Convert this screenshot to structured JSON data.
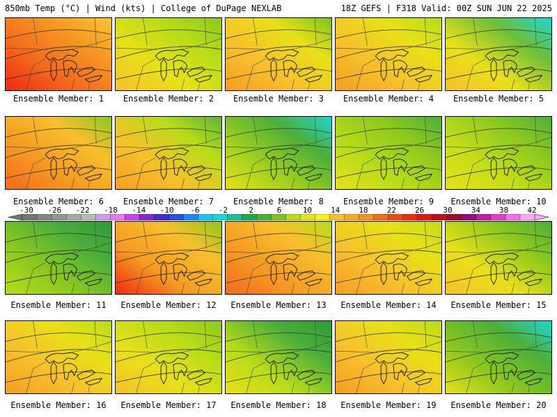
{
  "header": {
    "left": "850mb Temp (°C) | Wind (kts) | College of DuPage NEXLAB",
    "right": "18Z GEFS | F318 Valid: 00Z SUN JUN 22 2025"
  },
  "panels": [
    {
      "label": "Ensemble Member: 1",
      "colors": [
        "#f02a10",
        "#f36a1c",
        "#f59a22",
        "#f8c532"
      ]
    },
    {
      "label": "Ensemble Member: 2",
      "colors": [
        "#f7c02c",
        "#e8e018",
        "#b8dc18",
        "#8cc81e"
      ]
    },
    {
      "label": "Ensemble Member: 3",
      "colors": [
        "#f59e22",
        "#f7c02c",
        "#e8e018",
        "#7cc21e"
      ]
    },
    {
      "label": "Ensemble Member: 4",
      "colors": [
        "#f59e22",
        "#f7c02c",
        "#e8e018",
        "#b8dc18"
      ]
    },
    {
      "label": "Ensemble Member: 5",
      "colors": [
        "#f7c02c",
        "#e8e018",
        "#6cbe3a",
        "#1ed7d0"
      ]
    },
    {
      "label": "Ensemble Member: 6",
      "colors": [
        "#f36a1c",
        "#f59a22",
        "#f7c02c",
        "#8cc81e"
      ]
    },
    {
      "label": "Ensemble Member: 7",
      "colors": [
        "#f59e22",
        "#f7c02c",
        "#b8dc18",
        "#5ab43a"
      ]
    },
    {
      "label": "Ensemble Member: 8",
      "colors": [
        "#e8e018",
        "#9fd01e",
        "#4cae3a",
        "#1ed7d0"
      ]
    },
    {
      "label": "Ensemble Member: 9",
      "colors": [
        "#e8e018",
        "#b8dc18",
        "#8cc81e",
        "#4cae3a"
      ]
    },
    {
      "label": "Ensemble Member: 10",
      "colors": [
        "#e8e018",
        "#c4de18",
        "#8cc81e",
        "#4cae3a"
      ]
    },
    {
      "label": "Ensemble Member: 11",
      "colors": [
        "#b8dc18",
        "#8cc81e",
        "#4cae3a",
        "#2f9a38"
      ]
    },
    {
      "label": "Ensemble Member: 12",
      "colors": [
        "#f02a10",
        "#f59a22",
        "#f7c02c",
        "#8cc81e"
      ]
    },
    {
      "label": "Ensemble Member: 13",
      "colors": [
        "#f36a1c",
        "#f59a22",
        "#f7c02c",
        "#b8dc18"
      ]
    },
    {
      "label": "Ensemble Member: 14",
      "colors": [
        "#f59e22",
        "#f7c02c",
        "#e8e018",
        "#c4de18"
      ]
    },
    {
      "label": "Ensemble Member: 15",
      "colors": [
        "#f7c02c",
        "#e8e018",
        "#8cc81e",
        "#4cae3a"
      ]
    },
    {
      "label": "Ensemble Member: 16",
      "colors": [
        "#f59e22",
        "#f7c02c",
        "#e8e018",
        "#b8dc18"
      ]
    },
    {
      "label": "Ensemble Member: 17",
      "colors": [
        "#f7c02c",
        "#e8e018",
        "#b8dc18",
        "#8cc81e"
      ]
    },
    {
      "label": "Ensemble Member: 18",
      "colors": [
        "#e8e018",
        "#b8dc18",
        "#4cae3a",
        "#2f9a38"
      ]
    },
    {
      "label": "Ensemble Member: 19",
      "colors": [
        "#f59e22",
        "#f7c02c",
        "#e8e018",
        "#b8dc18"
      ]
    },
    {
      "label": "Ensemble Member: 20",
      "colors": [
        "#e8e018",
        "#8cc81e",
        "#4cae3a",
        "#1ed7d0"
      ]
    }
  ],
  "colorbar": {
    "ticks": [
      "-30",
      "-26",
      "-22",
      "-18",
      "-14",
      "-10",
      "-6",
      "-2",
      "2",
      "6",
      "10",
      "14",
      "18",
      "22",
      "26",
      "30",
      "34",
      "38",
      "42"
    ],
    "colors": [
      "#6e7a6e",
      "#7e8a7e",
      "#8e9a8e",
      "#a0aaa0",
      "#b4bcb4",
      "#c8a0e8",
      "#e878f0",
      "#c840e8",
      "#8828c8",
      "#4a2cc8",
      "#2a50e0",
      "#1e86f0",
      "#20c0f0",
      "#1ed7d0",
      "#18c098",
      "#20a848",
      "#48b038",
      "#7cc21e",
      "#b8dc18",
      "#e8e018",
      "#f8f018",
      "#f7c02c",
      "#f5a824",
      "#f59022",
      "#f36a1c",
      "#f04a14",
      "#f02a10",
      "#e01818",
      "#c01020",
      "#a00c2c",
      "#901080",
      "#c020a0",
      "#e040c0",
      "#f070e0",
      "#f8a8f0"
    ]
  }
}
